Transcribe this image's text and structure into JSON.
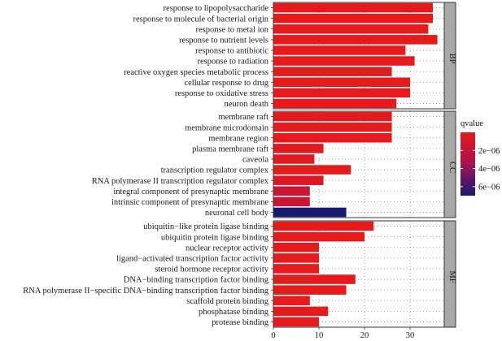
{
  "chart_data": {
    "type": "bar",
    "orientation": "horizontal",
    "xlabel": "",
    "ylabel": "",
    "xlim": [
      0,
      37.5
    ],
    "xticks": [
      0,
      10,
      20,
      30
    ],
    "grid": "dotted",
    "color_variable": "qvalue",
    "color_scale": {
      "title": "qvalue",
      "low_color": "#e41a1c",
      "high_color": "#191970",
      "range": [
        0,
        7e-06
      ],
      "ticks": [
        {
          "value": 2e-06,
          "label": "2e−06"
        },
        {
          "value": 4e-06,
          "label": "4e−06"
        },
        {
          "value": 6e-06,
          "label": "6e−06"
        }
      ]
    },
    "panels": [
      {
        "name": "BP",
        "categories": [
          "response to lipopolysaccharide",
          "response to molecule of bacterial origin",
          "response to metal ion",
          "response to nutrient levels",
          "response to antibiotic",
          "response to radiation",
          "reactive oxygen species metabolic process",
          "cellular response to drug",
          "response to oxidative stress",
          "neuron death"
        ],
        "values": [
          35,
          35,
          34,
          36,
          29,
          31,
          26,
          30,
          30,
          27
        ],
        "qvalues": [
          0,
          0,
          0,
          0,
          0,
          0,
          0,
          0,
          0,
          0
        ]
      },
      {
        "name": "CC",
        "categories": [
          "membrane raft",
          "membrane microdomain",
          "membrane region",
          "plasma membrane raft",
          "caveola",
          "transcription regulator complex",
          "RNA polymerase II transcription regulator complex",
          "integral component of presynaptic membrane",
          "intrinsic component of presynaptic membrane",
          "neuronal cell body"
        ],
        "values": [
          26,
          26,
          26,
          11,
          9,
          17,
          11,
          8,
          8,
          16
        ],
        "qvalues": [
          0,
          0,
          0,
          2e-07,
          4e-07,
          0,
          6e-07,
          1.6e-06,
          1.6e-06,
          7e-06
        ]
      },
      {
        "name": "MF",
        "categories": [
          "ubiquitin−like protein ligase binding",
          "ubiquitin protein ligase binding",
          "nuclear receptor activity",
          "ligand−activated transcription factor activity",
          "steroid hormone receptor activity",
          "DNA−binding transcription factor binding",
          "RNA polymerase II−specific DNA−binding transcription factor binding",
          "scaffold protein binding",
          "phosphatase binding",
          "protease binding"
        ],
        "values": [
          22,
          20,
          10,
          10,
          10,
          18,
          16,
          8,
          12,
          10
        ],
        "qvalues": [
          0,
          0,
          0,
          0,
          0,
          0,
          0,
          0,
          0,
          0
        ]
      }
    ]
  }
}
